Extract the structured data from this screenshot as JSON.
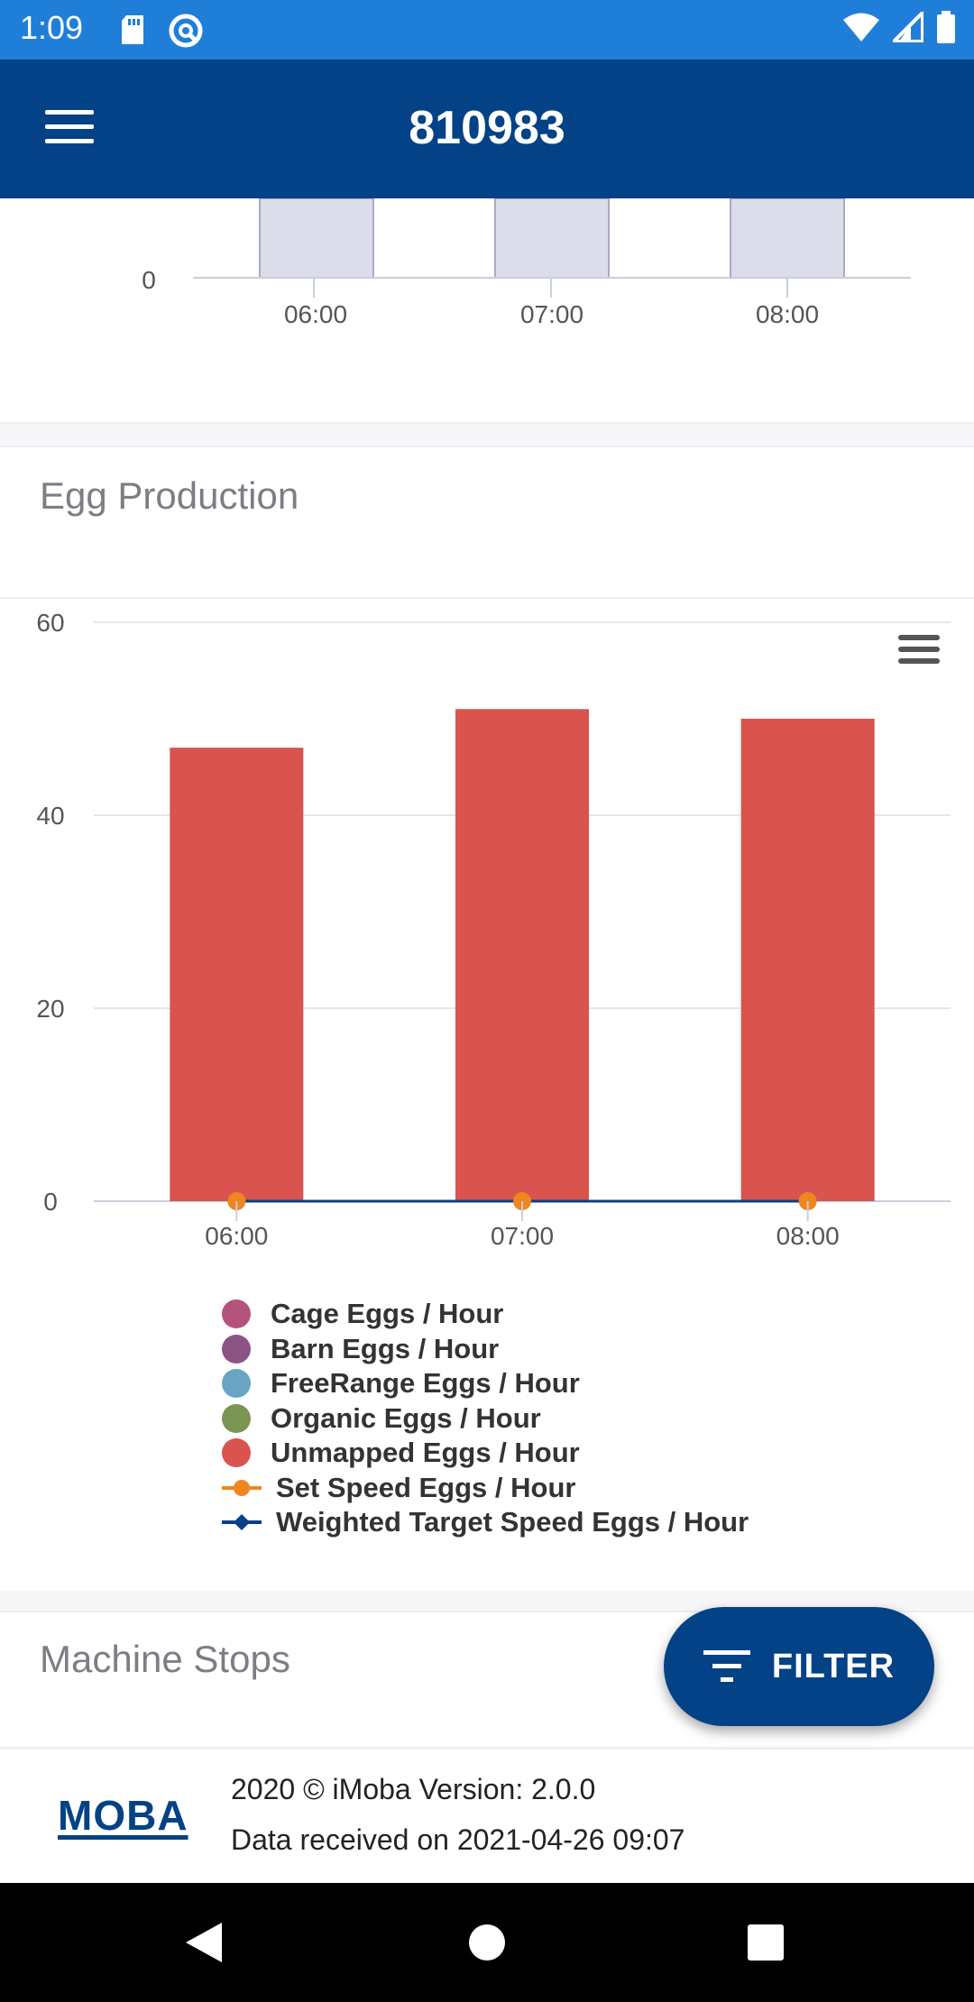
{
  "status_bar": {
    "time": "1:09"
  },
  "app_bar": {
    "title": "810983"
  },
  "top_chart": {
    "y_tick": "0",
    "x_ticks": [
      "06:00",
      "07:00",
      "08:00"
    ]
  },
  "egg_production": {
    "title": "Egg Production"
  },
  "chart_data": {
    "type": "bar",
    "categories": [
      "06:00",
      "07:00",
      "08:00"
    ],
    "series": [
      {
        "name": "Cage Eggs / Hour",
        "values": [
          0,
          0,
          0
        ],
        "color": "#b3537b"
      },
      {
        "name": "Barn Eggs / Hour",
        "values": [
          0,
          0,
          0
        ],
        "color": "#8a5384"
      },
      {
        "name": "FreeRange Eggs / Hour",
        "values": [
          0,
          0,
          0
        ],
        "color": "#6aa4c4"
      },
      {
        "name": "Organic Eggs / Hour",
        "values": [
          0,
          0,
          0
        ],
        "color": "#7a9452"
      },
      {
        "name": "Unmapped Eggs / Hour",
        "values": [
          47,
          51,
          50
        ],
        "color": "#d9534f"
      },
      {
        "name": "Set Speed Eggs / Hour",
        "values": [
          0,
          0,
          0
        ],
        "color": "#f0861e",
        "type": "line"
      },
      {
        "name": "Weighted Target Speed Eggs / Hour",
        "values": [
          0,
          0,
          0
        ],
        "color": "#0c3f85",
        "type": "line"
      }
    ],
    "ylim": [
      0,
      60
    ],
    "y_ticks": [
      "0",
      "20",
      "40",
      "60"
    ],
    "grid": true,
    "legend": "bottom"
  },
  "machine_stops": {
    "title": "Machine Stops"
  },
  "fab": {
    "label": "FILTER"
  },
  "footer": {
    "logo": "MOBA",
    "line1": "2020 © iMoba Version: 2.0.0",
    "line2": "Data received on 2021-04-26 09:07"
  }
}
